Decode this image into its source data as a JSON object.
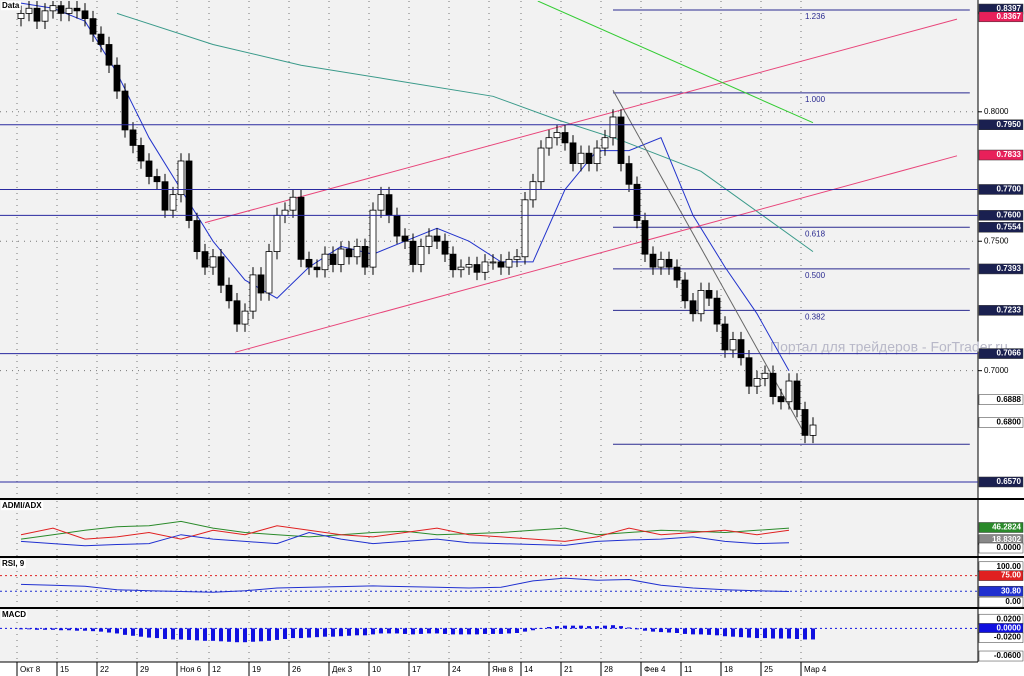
{
  "chart_data": [
    {
      "type": "candlestick",
      "title": "Data",
      "categories": [
        "Окт 8",
        null,
        null,
        null,
        null,
        "15",
        null,
        null,
        null,
        null,
        "22",
        null,
        null,
        null,
        null,
        "29",
        null,
        null,
        null,
        null,
        "Ноя 6",
        null,
        null,
        null,
        "12",
        null,
        null,
        null,
        null,
        "19",
        null,
        null,
        null,
        null,
        "26",
        null,
        null,
        null,
        null,
        "Дек 3",
        null,
        null,
        null,
        null,
        "10",
        null,
        null,
        null,
        null,
        "17",
        null,
        null,
        null,
        null,
        "24",
        null,
        null,
        null,
        null,
        "Янв 8",
        null,
        null,
        null,
        "14",
        null,
        null,
        null,
        null,
        "21",
        null,
        null,
        null,
        null,
        "28",
        null,
        null,
        null,
        null,
        "Фев 4",
        null,
        null,
        null,
        null,
        "11",
        null,
        null,
        null,
        null,
        "18",
        null,
        null,
        null,
        null,
        "25",
        null,
        null,
        null,
        null,
        "Мар 4",
        null
      ],
      "open": [
        0.836,
        0.838,
        0.84,
        0.835,
        0.839,
        0.841,
        0.838,
        0.84,
        0.839,
        0.836,
        0.83,
        0.826,
        0.818,
        0.808,
        0.793,
        0.787,
        0.781,
        0.775,
        0.773,
        0.762,
        0.768,
        0.781,
        0.758,
        0.746,
        0.74,
        0.744,
        0.733,
        0.727,
        0.718,
        0.723,
        0.737,
        0.73,
        0.746,
        0.76,
        0.762,
        0.767,
        0.743,
        0.74,
        0.739,
        0.745,
        0.741,
        0.747,
        0.744,
        0.748,
        0.74,
        0.762,
        0.768,
        0.76,
        0.752,
        0.75,
        0.741,
        0.748,
        0.752,
        0.75,
        0.745,
        0.739,
        0.74,
        0.741,
        0.738,
        0.742,
        0.742,
        0.74,
        0.743,
        0.744,
        0.766,
        0.773,
        0.786,
        0.79,
        0.792,
        0.788,
        0.78,
        0.784,
        0.78,
        0.786,
        0.79,
        0.798,
        0.78,
        0.772,
        0.758,
        0.745,
        0.74,
        0.743,
        0.74,
        0.735,
        0.727,
        0.722,
        0.731,
        0.728,
        0.718,
        0.708,
        0.712,
        0.705,
        0.694,
        0.697,
        0.699,
        0.69,
        0.688,
        0.696,
        0.685,
        0.675
      ],
      "high": [
        0.841,
        0.843,
        0.843,
        0.842,
        0.844,
        0.844,
        0.843,
        0.843,
        0.842,
        0.839,
        0.833,
        0.829,
        0.821,
        0.811,
        0.796,
        0.79,
        0.784,
        0.778,
        0.776,
        0.771,
        0.784,
        0.784,
        0.761,
        0.749,
        0.747,
        0.747,
        0.736,
        0.73,
        0.726,
        0.74,
        0.74,
        0.749,
        0.763,
        0.765,
        0.77,
        0.77,
        0.746,
        0.743,
        0.748,
        0.748,
        0.75,
        0.75,
        0.751,
        0.751,
        0.765,
        0.771,
        0.771,
        0.763,
        0.755,
        0.753,
        0.751,
        0.755,
        0.755,
        0.753,
        0.748,
        0.743,
        0.744,
        0.744,
        0.745,
        0.745,
        0.745,
        0.746,
        0.747,
        0.769,
        0.776,
        0.789,
        0.793,
        0.795,
        0.795,
        0.791,
        0.787,
        0.787,
        0.789,
        0.793,
        0.801,
        0.801,
        0.783,
        0.775,
        0.761,
        0.748,
        0.746,
        0.746,
        0.743,
        0.738,
        0.73,
        0.734,
        0.734,
        0.731,
        0.721,
        0.715,
        0.715,
        0.708,
        0.7,
        0.702,
        0.702,
        0.693,
        0.699,
        0.699,
        0.688,
        0.682
      ],
      "low": [
        0.833,
        0.835,
        0.832,
        0.832,
        0.836,
        0.835,
        0.835,
        0.836,
        0.833,
        0.827,
        0.823,
        0.815,
        0.805,
        0.79,
        0.784,
        0.778,
        0.772,
        0.77,
        0.759,
        0.759,
        0.765,
        0.755,
        0.743,
        0.737,
        0.737,
        0.73,
        0.724,
        0.715,
        0.715,
        0.72,
        0.727,
        0.727,
        0.743,
        0.757,
        0.759,
        0.74,
        0.737,
        0.736,
        0.736,
        0.738,
        0.738,
        0.741,
        0.741,
        0.737,
        0.737,
        0.759,
        0.757,
        0.749,
        0.747,
        0.738,
        0.738,
        0.745,
        0.747,
        0.742,
        0.736,
        0.736,
        0.737,
        0.735,
        0.735,
        0.739,
        0.737,
        0.737,
        0.74,
        0.741,
        0.763,
        0.77,
        0.783,
        0.787,
        0.785,
        0.777,
        0.777,
        0.777,
        0.777,
        0.783,
        0.787,
        0.777,
        0.769,
        0.755,
        0.742,
        0.737,
        0.737,
        0.737,
        0.732,
        0.724,
        0.719,
        0.719,
        0.725,
        0.715,
        0.705,
        0.705,
        0.702,
        0.691,
        0.691,
        0.694,
        0.687,
        0.685,
        0.685,
        0.682,
        0.672,
        0.672
      ],
      "close": [
        0.838,
        0.84,
        0.835,
        0.839,
        0.841,
        0.838,
        0.84,
        0.839,
        0.836,
        0.83,
        0.826,
        0.818,
        0.808,
        0.793,
        0.787,
        0.781,
        0.775,
        0.773,
        0.762,
        0.768,
        0.781,
        0.758,
        0.746,
        0.74,
        0.744,
        0.733,
        0.727,
        0.718,
        0.723,
        0.737,
        0.73,
        0.746,
        0.76,
        0.762,
        0.767,
        0.743,
        0.74,
        0.739,
        0.745,
        0.741,
        0.747,
        0.744,
        0.748,
        0.74,
        0.762,
        0.768,
        0.76,
        0.752,
        0.75,
        0.741,
        0.748,
        0.752,
        0.75,
        0.745,
        0.739,
        0.74,
        0.741,
        0.738,
        0.742,
        0.742,
        0.74,
        0.743,
        0.744,
        0.766,
        0.773,
        0.786,
        0.79,
        0.792,
        0.788,
        0.78,
        0.784,
        0.78,
        0.786,
        0.79,
        0.798,
        0.78,
        0.772,
        0.758,
        0.745,
        0.74,
        0.743,
        0.74,
        0.735,
        0.727,
        0.722,
        0.731,
        0.728,
        0.718,
        0.708,
        0.712,
        0.705,
        0.694,
        0.697,
        0.699,
        0.69,
        0.688,
        0.696,
        0.685,
        0.675,
        0.679
      ],
      "up_color": "#ffffff",
      "down_color": "#000000",
      "ylim": [
        0.6512,
        0.8428
      ],
      "yticks": [
        {
          "value": 0.8,
          "label": "0.8000"
        },
        {
          "value": 0.75,
          "label": "0.7500"
        },
        {
          "value": 0.7,
          "label": "0.7000"
        }
      ],
      "grid": true,
      "lines": [
        {
          "color": "#2233cc",
          "x": [
            0,
            4,
            8,
            12,
            16,
            20,
            24,
            28,
            32,
            36,
            40,
            44,
            48,
            52,
            56,
            60,
            64,
            68,
            72,
            76,
            80,
            84,
            88,
            92,
            96
          ],
          "values": [
            0.842,
            0.84,
            0.835,
            0.815,
            0.79,
            0.77,
            0.75,
            0.735,
            0.728,
            0.74,
            0.748,
            0.745,
            0.75,
            0.755,
            0.75,
            0.742,
            0.742,
            0.77,
            0.785,
            0.785,
            0.79,
            0.76,
            0.74,
            0.722,
            0.7
          ]
        },
        {
          "color": "#3a9a8a",
          "x": [
            12,
            24,
            35,
            47,
            59,
            67,
            75,
            85,
            99
          ],
          "values": [
            0.838,
            0.826,
            0.818,
            0.812,
            0.806,
            0.797,
            0.789,
            0.777,
            0.746
          ]
        }
      ],
      "trendlines": [
        {
          "color": "#e8457a",
          "x": [
            23,
            117
          ],
          "values": [
            0.7572,
            0.8358
          ]
        },
        {
          "color": "#e8457a",
          "x": [
            26.75,
            117
          ],
          "values": [
            0.7071,
            0.783
          ]
        },
        {
          "color": "#33cc33",
          "x": [
            64.6,
            99
          ],
          "values": [
            0.8428,
            0.7958
          ]
        },
        {
          "color": "#666666",
          "x": [
            74,
            98
          ],
          "values": [
            0.8083,
            0.6754
          ]
        }
      ],
      "levels": [
        {
          "value": 0.8397,
          "color": "#1a2050"
        },
        {
          "value": 0.8367,
          "color": "#e8205a"
        },
        {
          "value": 0.795,
          "label": "0.7950",
          "color": "#1a2050",
          "line": true
        },
        {
          "value": 0.7833,
          "color": "#e8205a"
        },
        {
          "value": 0.77,
          "label": "0.7700",
          "color": "#1a2050",
          "line": true
        },
        {
          "value": 0.76,
          "label": "0.7600",
          "color": "#1a2050",
          "line": true
        },
        {
          "value": 0.7554,
          "color": "#1a2050"
        },
        {
          "value": 0.7393,
          "color": "#1a2050"
        },
        {
          "value": 0.7233,
          "color": "#1a2050"
        },
        {
          "value": 0.7066,
          "color": "#1a2050",
          "line": true
        },
        {
          "value": 0.6888,
          "color": "#ffffff"
        },
        {
          "value": 0.68,
          "label": "0.6800",
          "color": "#ffffff"
        },
        {
          "value": 0.657,
          "label": "0.6570",
          "color": "#1a2050",
          "line": true
        }
      ],
      "fib": {
        "x": [
          74,
          118.6
        ],
        "color": "#2a2a90",
        "levels": [
          {
            "label": "1.236",
            "price": 0.8393
          },
          {
            "label": "1.000",
            "price": 0.8073
          },
          {
            "label": "0.618",
            "price": 0.7554
          },
          {
            "label": "0.500",
            "price": 0.7393
          },
          {
            "label": "0.382",
            "price": 0.7233
          },
          {
            "price": 0.6716
          }
        ]
      },
      "watermark": "Портал для трейдеров - ForTrader.ru"
    },
    {
      "type": "line",
      "title": "ADMI/ADX",
      "x": [
        0,
        4,
        8,
        12,
        16,
        20,
        24,
        28,
        32,
        36,
        40,
        44,
        48,
        52,
        56,
        60,
        64,
        68,
        72,
        76,
        80,
        84,
        88,
        92,
        96
      ],
      "series": [
        {
          "color": "#2a8a2a",
          "values": [
            20,
            30,
            40,
            48,
            50,
            60,
            45,
            35,
            30,
            25,
            30,
            35,
            38,
            30,
            32,
            35,
            40,
            45,
            30,
            35,
            40,
            38,
            35,
            40,
            45
          ]
        },
        {
          "color": "#e02020",
          "values": [
            30,
            45,
            20,
            25,
            35,
            20,
            40,
            30,
            50,
            40,
            30,
            25,
            35,
            45,
            30,
            25,
            20,
            15,
            25,
            45,
            30,
            35,
            40,
            30,
            40
          ]
        },
        {
          "color": "#2030d0",
          "values": [
            15,
            10,
            5,
            8,
            10,
            30,
            20,
            15,
            10,
            35,
            20,
            10,
            15,
            20,
            12,
            10,
            8,
            6,
            15,
            18,
            20,
            25,
            15,
            10,
            12
          ]
        }
      ],
      "ylim": [
        -18,
        106
      ],
      "levels": [
        {
          "value": 46.2824,
          "color": "#2a8a2a"
        },
        {
          "value": 18.8302,
          "color": "#888888"
        },
        {
          "value": 0,
          "label": "0.0000",
          "color": "#ffffff"
        }
      ]
    },
    {
      "type": "line",
      "title": "RSI, 9",
      "x": [
        0,
        4,
        8,
        12,
        16,
        20,
        24,
        28,
        32,
        36,
        40,
        44,
        48,
        52,
        56,
        60,
        64,
        68,
        72,
        76,
        80,
        84,
        88,
        92,
        96
      ],
      "series": [
        {
          "color": "#2030d0",
          "values": [
            50,
            48,
            45,
            35,
            32,
            30,
            28,
            32,
            40,
            42,
            44,
            46,
            44,
            42,
            40,
            42,
            60,
            68,
            62,
            64,
            48,
            40,
            35,
            32,
            30
          ]
        }
      ],
      "ylim": [
        -11,
        122
      ],
      "levels": [
        {
          "value": 100,
          "label": "100.00",
          "color": "#ffffff"
        },
        {
          "value": 75,
          "label": "75.00",
          "color": "#e02020",
          "line": true
        },
        {
          "value": 30.8,
          "label": "30.80",
          "color": "#2030d0",
          "line": true
        },
        {
          "value": 0,
          "label": "0.00",
          "color": "#ffffff"
        }
      ]
    },
    {
      "type": "bar",
      "title": "MACD",
      "color": "#1010e0",
      "values": [
        -0.002,
        -0.002,
        -0.003,
        -0.003,
        -0.003,
        -0.004,
        -0.004,
        -0.005,
        -0.005,
        -0.006,
        -0.007,
        -0.009,
        -0.011,
        -0.014,
        -0.016,
        -0.018,
        -0.02,
        -0.021,
        -0.023,
        -0.024,
        -0.024,
        -0.025,
        -0.026,
        -0.027,
        -0.027,
        -0.028,
        -0.029,
        -0.03,
        -0.03,
        -0.029,
        -0.028,
        -0.027,
        -0.025,
        -0.023,
        -0.021,
        -0.021,
        -0.02,
        -0.019,
        -0.018,
        -0.018,
        -0.017,
        -0.016,
        -0.015,
        -0.015,
        -0.013,
        -0.011,
        -0.011,
        -0.011,
        -0.012,
        -0.013,
        -0.012,
        -0.011,
        -0.011,
        -0.012,
        -0.013,
        -0.013,
        -0.013,
        -0.013,
        -0.012,
        -0.012,
        -0.012,
        -0.011,
        -0.01,
        -0.007,
        -0.004,
        0.0,
        0.003,
        0.005,
        0.006,
        0.006,
        0.006,
        0.005,
        0.005,
        0.006,
        0.007,
        0.005,
        0.002,
        -0.002,
        -0.005,
        -0.007,
        -0.008,
        -0.009,
        -0.01,
        -0.012,
        -0.013,
        -0.013,
        -0.014,
        -0.015,
        -0.017,
        -0.018,
        -0.019,
        -0.02,
        -0.021,
        -0.021,
        -0.022,
        -0.022,
        -0.022,
        -0.023,
        -0.024,
        -0.024
      ],
      "ylim": [
        -0.073,
        0.04
      ],
      "levels": [
        {
          "value": 0.02,
          "label": "0.0200",
          "color": "#ffffff"
        },
        {
          "value": 0,
          "label": "0.0000",
          "color": "#1010e0",
          "line": true
        },
        {
          "value": -0.02,
          "label": "-0.0200",
          "color": "#ffffff"
        },
        {
          "value": -0.06,
          "label": "-0.0600",
          "color": "#ffffff"
        }
      ]
    }
  ]
}
